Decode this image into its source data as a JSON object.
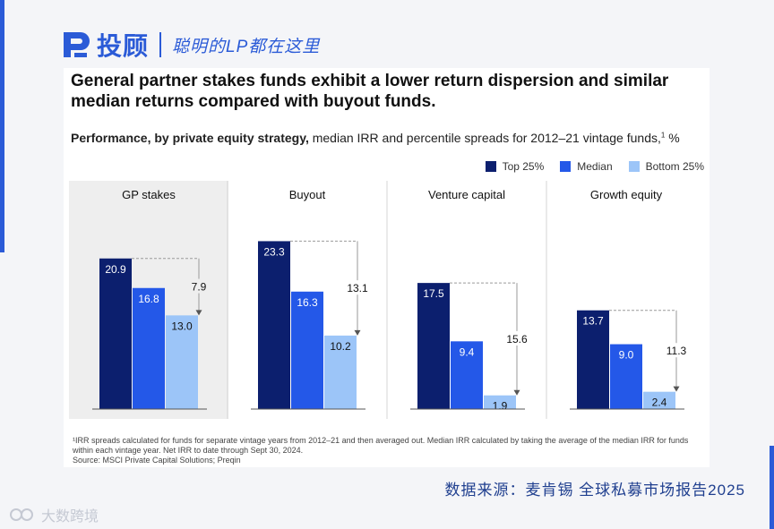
{
  "brand": {
    "name": "投顾",
    "slogan": "聪明的LP都在这里"
  },
  "chart_data": {
    "type": "bar",
    "title": "General partner stakes funds exhibit a lower return dispersion and similar median returns compared with buyout funds.",
    "subtitle_bold": "Performance, by private equity strategy,",
    "subtitle_rest": " median IRR and percentile spreads for 2012–21 vintage funds,",
    "subtitle_sup": "1",
    "subtitle_unit": " %",
    "categories": [
      "GP stakes",
      "Buyout",
      "Venture capital",
      "Growth equity"
    ],
    "series": [
      {
        "name": "Top 25%",
        "values": [
          20.9,
          23.3,
          17.5,
          13.7
        ]
      },
      {
        "name": "Median",
        "values": [
          16.8,
          16.3,
          9.4,
          9.0
        ]
      },
      {
        "name": "Bottom 25%",
        "values": [
          13.0,
          10.2,
          1.9,
          2.4
        ]
      }
    ],
    "spreads": [
      7.9,
      13.1,
      15.6,
      11.3
    ],
    "value_labels": [
      [
        "20.9",
        "16.8",
        "13.0"
      ],
      [
        "23.3",
        "16.3",
        "10.2"
      ],
      [
        "17.5",
        "9.4",
        "1.9"
      ],
      [
        "13.7",
        "9.0",
        "2.4"
      ]
    ],
    "spread_labels": [
      "7.9",
      "13.1",
      "15.6",
      "11.3"
    ],
    "highlighted_category": "GP stakes",
    "ylim": [
      0,
      25
    ],
    "legend_position": "top-right",
    "colors": {
      "top": "#0c1f6e",
      "median": "#2458e8",
      "bottom": "#9cc5f8",
      "highlight_bg": "#eeeeee",
      "axis": "#555555",
      "divider": "#d6d6d6",
      "connector": "#9a9a9a"
    }
  },
  "footnote": {
    "text": "¹IRR spreads calculated for funds for separate vintage years from 2012–21 and then averaged out. Median IRR calculated by taking the average of the median IRR for funds within each vintage year. Net IRR to date through Sept 30, 2024.",
    "source": "Source: MSCI Private Capital Solutions; Preqin"
  },
  "source_cn": "数据来源：麦肯锡 全球私募市场报告2025",
  "watermark": "大数跨境"
}
